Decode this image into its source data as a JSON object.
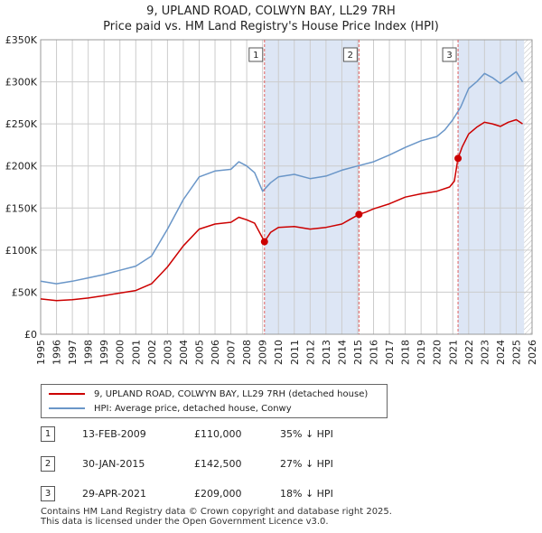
{
  "title": {
    "line1": "9, UPLAND ROAD, COLWYN BAY, LL29 7RH",
    "line2": "Price paid vs. HM Land Registry's House Price Index (HPI)"
  },
  "colors": {
    "price_line": "#cc0000",
    "hpi_line": "#6a96c8",
    "shade": "#dde6f5",
    "vline": "#e06060",
    "grid": "#cccccc"
  },
  "legend": {
    "price_label": "9, UPLAND ROAD, COLWYN BAY, LL29 7RH (detached house)",
    "hpi_label": "HPI: Average price, detached house, Conwy"
  },
  "sales": [
    {
      "num": "1",
      "date": "13-FEB-2009",
      "price": "£110,000",
      "hpi": "35% ↓ HPI"
    },
    {
      "num": "2",
      "date": "30-JAN-2015",
      "price": "£142,500",
      "hpi": "27% ↓ HPI"
    },
    {
      "num": "3",
      "date": "29-APR-2021",
      "price": "£209,000",
      "hpi": "18% ↓ HPI"
    }
  ],
  "footer": {
    "line1": "Contains HM Land Registry data © Crown copyright and database right 2025.",
    "line2": "This data is licensed under the Open Government Licence v3.0."
  },
  "chart_data": {
    "type": "line",
    "title": "Price paid vs. HM Land Registry's House Price Index (HPI)",
    "xlabel": "",
    "ylabel": "",
    "xlim": [
      1995,
      2026
    ],
    "ylim": [
      0,
      350000
    ],
    "y_ticks": [
      0,
      50000,
      100000,
      150000,
      200000,
      250000,
      300000,
      350000
    ],
    "y_tick_labels": [
      "£0",
      "£50K",
      "£100K",
      "£150K",
      "£200K",
      "£250K",
      "£300K",
      "£350K"
    ],
    "x_ticks": [
      1995,
      1996,
      1997,
      1998,
      1999,
      2000,
      2001,
      2002,
      2003,
      2004,
      2005,
      2006,
      2007,
      2008,
      2009,
      2010,
      2011,
      2012,
      2013,
      2014,
      2015,
      2016,
      2017,
      2018,
      2019,
      2020,
      2021,
      2022,
      2023,
      2024,
      2025,
      2026
    ],
    "grid": true,
    "shaded_ranges": [
      [
        2009.12,
        2015.08
      ],
      [
        2021.33,
        2025.5
      ]
    ],
    "hatched_range": [
      2025.5,
      2026
    ],
    "markers": [
      {
        "label": "1",
        "x": 2009.12,
        "y": 110000
      },
      {
        "label": "2",
        "x": 2015.08,
        "y": 142500
      },
      {
        "label": "3",
        "x": 2021.33,
        "y": 209000
      }
    ],
    "series": [
      {
        "name": "9, UPLAND ROAD, COLWYN BAY, LL29 7RH (detached house)",
        "color": "#cc0000",
        "x": [
          1995,
          1996,
          1997,
          1998,
          1999,
          2000,
          2001,
          2002,
          2003,
          2004,
          2005,
          2006,
          2007,
          2007.5,
          2008,
          2008.5,
          2009.12,
          2009.5,
          2010,
          2011,
          2012,
          2013,
          2014,
          2015.08,
          2015.5,
          2016,
          2017,
          2018,
          2019,
          2020,
          2020.8,
          2021.1,
          2021.33,
          2021.6,
          2022,
          2022.5,
          2023,
          2023.5,
          2024,
          2024.5,
          2025,
          2025.4
        ],
        "y": [
          42000,
          40000,
          41000,
          43000,
          46000,
          49000,
          52000,
          60000,
          80000,
          105000,
          125000,
          131000,
          133000,
          139000,
          136000,
          132000,
          110000,
          121000,
          127000,
          128000,
          125000,
          127000,
          131000,
          142500,
          145000,
          149000,
          155000,
          163000,
          167000,
          170000,
          175000,
          182000,
          209000,
          223000,
          238000,
          246000,
          252000,
          250000,
          247000,
          252000,
          255000,
          250000
        ]
      },
      {
        "name": "HPI: Average price, detached house, Conwy",
        "color": "#6a96c8",
        "x": [
          1995,
          1996,
          1997,
          1998,
          1999,
          2000,
          2001,
          2002,
          2003,
          2004,
          2005,
          2006,
          2007,
          2007.5,
          2008,
          2008.5,
          2009,
          2009.5,
          2010,
          2011,
          2012,
          2013,
          2014,
          2015,
          2016,
          2017,
          2018,
          2019,
          2020,
          2020.5,
          2021,
          2021.5,
          2022,
          2022.5,
          2023,
          2023.5,
          2024,
          2024.5,
          2025,
          2025.4
        ],
        "y": [
          63000,
          60000,
          63000,
          67000,
          71000,
          76000,
          81000,
          93000,
          125000,
          160000,
          187000,
          194000,
          196000,
          205000,
          200000,
          192000,
          170000,
          180000,
          187000,
          190000,
          185000,
          188000,
          195000,
          200000,
          205000,
          213000,
          222000,
          230000,
          235000,
          243000,
          255000,
          270000,
          292000,
          300000,
          310000,
          305000,
          298000,
          305000,
          312000,
          300000
        ]
      }
    ]
  }
}
